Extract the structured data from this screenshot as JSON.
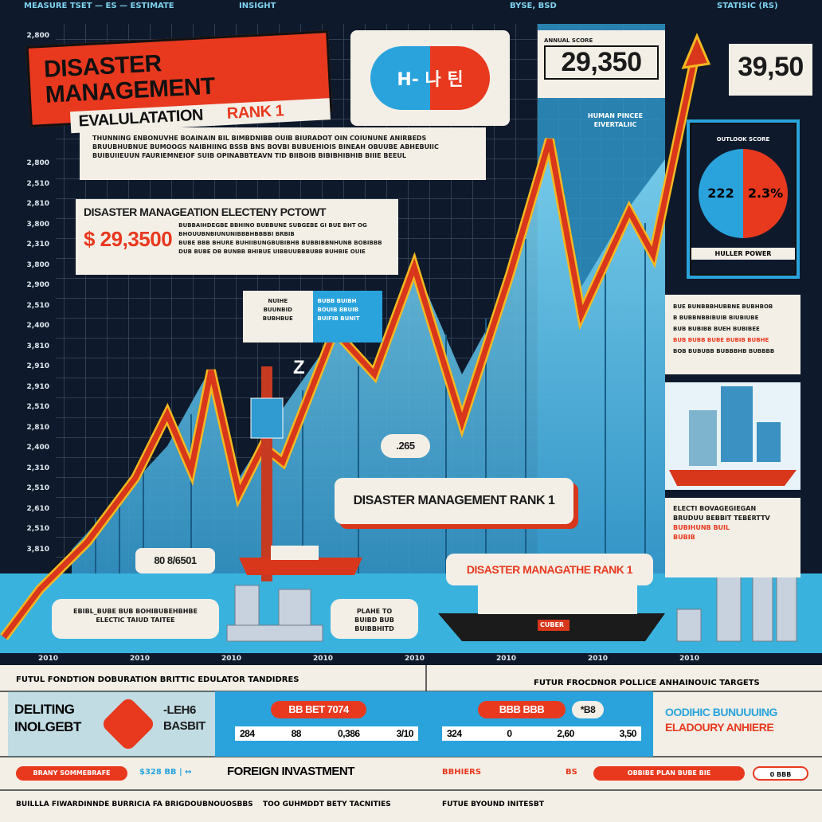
{
  "top_strip": [
    "MEASURE TSET — ES — ESTIMATE",
    "INSIGHT",
    "BYSE, BSD",
    "STATISIC (RS)"
  ],
  "header": {
    "title": "DISASTER MANAGEMENT",
    "subtitle": "EVALULATATION",
    "rank": "RANK 1",
    "badge": "H- 나 틴"
  },
  "stats": [
    {
      "label": "ANNUAL SCORE",
      "value": "29,350"
    },
    {
      "value": "39,50"
    }
  ],
  "stat_note": [
    "HUMAN PINCEE",
    "EIVERTALIIC"
  ],
  "y_axis": [
    "2,800",
    "2,800",
    "2,510",
    "2,810",
    "3,800",
    "2,310",
    "3,800",
    "2,900",
    "2,510",
    "2,400",
    "3,810",
    "2,910",
    "2,910",
    "2,510",
    "2,810",
    "2,400",
    "2,310",
    "2,510",
    "2,610",
    "2,510",
    "3,810"
  ],
  "x_axis": [
    "2010",
    "2010",
    "2010",
    "2010",
    "2010",
    "2010",
    "2010",
    "2010"
  ],
  "paragraph": [
    "THUNNING ENBONUVHE BOAINAIN BIL BIMBDNIBB OUIB BIURADOT OIN COIUNUNE ANIRBEDS",
    "BRUUBHUBNUE BUMOOGS NAIBHIING BSSB BNS BOVBI BUBUEHIOIS BINEAH OBUUBE ABHEBUIIC",
    "BUIBUIIEUUN FAURIEMNEIOF SUIB OPINABBTEAVN TID BIIBOIB BIBIBHIBHIB BIIIE BEEUL"
  ],
  "callout": {
    "title": "DISASTER MANAGEATION ELECTENY PCTOWT",
    "lines": [
      "BUBBAIHDEGBE BBHINO BUBBUNE SUBGEBE GI BUE BHT OG BHOUUBNBIUNUNIBBBHBBBBI BRBIB",
      "BUBE BBB BHURE BUHIIBUNGBUBIBHB BUBBIBBNHUNB BOBIBBB",
      "DUB BUBE DB BUNBB BHIBUE UIBBUUBBBUBB BUHBIE OUIE"
    ],
    "value": "$ 29,3500"
  },
  "small_box": {
    "left": [
      "NUIHE",
      "BUUNBID",
      "BUBHBUE"
    ],
    "right": [
      "BUBB BUIBH",
      "BOUIB BBUIB",
      "BUIFIB BUNIT"
    ]
  },
  "pie": {
    "label": "OUTLOOK SCORE",
    "left": "222",
    "right": "2.3%",
    "caption": "HULLER POWER"
  },
  "right_text": [
    "BUE BUNBBBHUBBNE BUBHBOB",
    "B BUBBNBBIBUIB BIUBIUBE",
    "BUB BUBIBB BUEH BUBIBEE",
    "BUB BUBB BUBE BUBIB BUBHE",
    "BOB BUBUBB BUBBBHB BUBBBB"
  ],
  "right_note": {
    "lines": [
      "ELECTI BOVAGEGIEGAN",
      "BRUDUU BEBBIT TEBERTTV"
    ],
    "accent": [
      "BUBIHUNB BUIL",
      "BUBIB"
    ]
  },
  "bubbles": {
    "z": "Z",
    "point": ".265",
    "left": "80 8/6501",
    "rank_a": "DISASTER MANAGEMENT RANK 1",
    "rank_b": "DISASTER MANAGATHE RANK 1",
    "note_a": [
      "EBIBL_BUBE BUB BOHIBUBEHBHBE",
      "ELECTIC TAIUD TAITEE"
    ],
    "note_b": [
      "PLAHE TO",
      "BUIBD BUB BUIBBHITD"
    ]
  },
  "ship_label": "CUBER",
  "bottom": {
    "left_header": "FUTUL FONDTION DOBURATION BRITTIC EDULATOR TANDIDRES",
    "right_header": "FUTUR FROCDNOR POLLICE ANHAINOUIC TARGETS",
    "row1": {
      "a": [
        "DELITING",
        "INOLGEBT"
      ],
      "b": [
        "-LEH6",
        "BASBIT"
      ],
      "pill_a": "BB BET 7074",
      "nums_a": [
        "284",
        "88",
        "0,386",
        "3/10"
      ],
      "pill_b": "BBB BBB",
      "tag_b": "*B8",
      "nums_b": [
        "324",
        "0",
        "2,60",
        "3,50"
      ],
      "c": [
        "OODIHIC BUNUUUING",
        "ELADOURY ANHIERE"
      ]
    },
    "row2": [
      "BRANY SOMMEBRAFE",
      "$328 BB | ↔",
      "FOREIGN INVASTMENT",
      "BBHIERS",
      "BS",
      "OBBIBE PLAN BUBE BIE",
      "0 BBB"
    ],
    "row3": [
      "BUILLLA FIWARDINNDE BURRICIA FA BRIGDOUBNOUOSBBS",
      "TOO GUHMDDT BETY TACNITIES",
      "FUTUE BYOUND INITESBT"
    ]
  }
}
